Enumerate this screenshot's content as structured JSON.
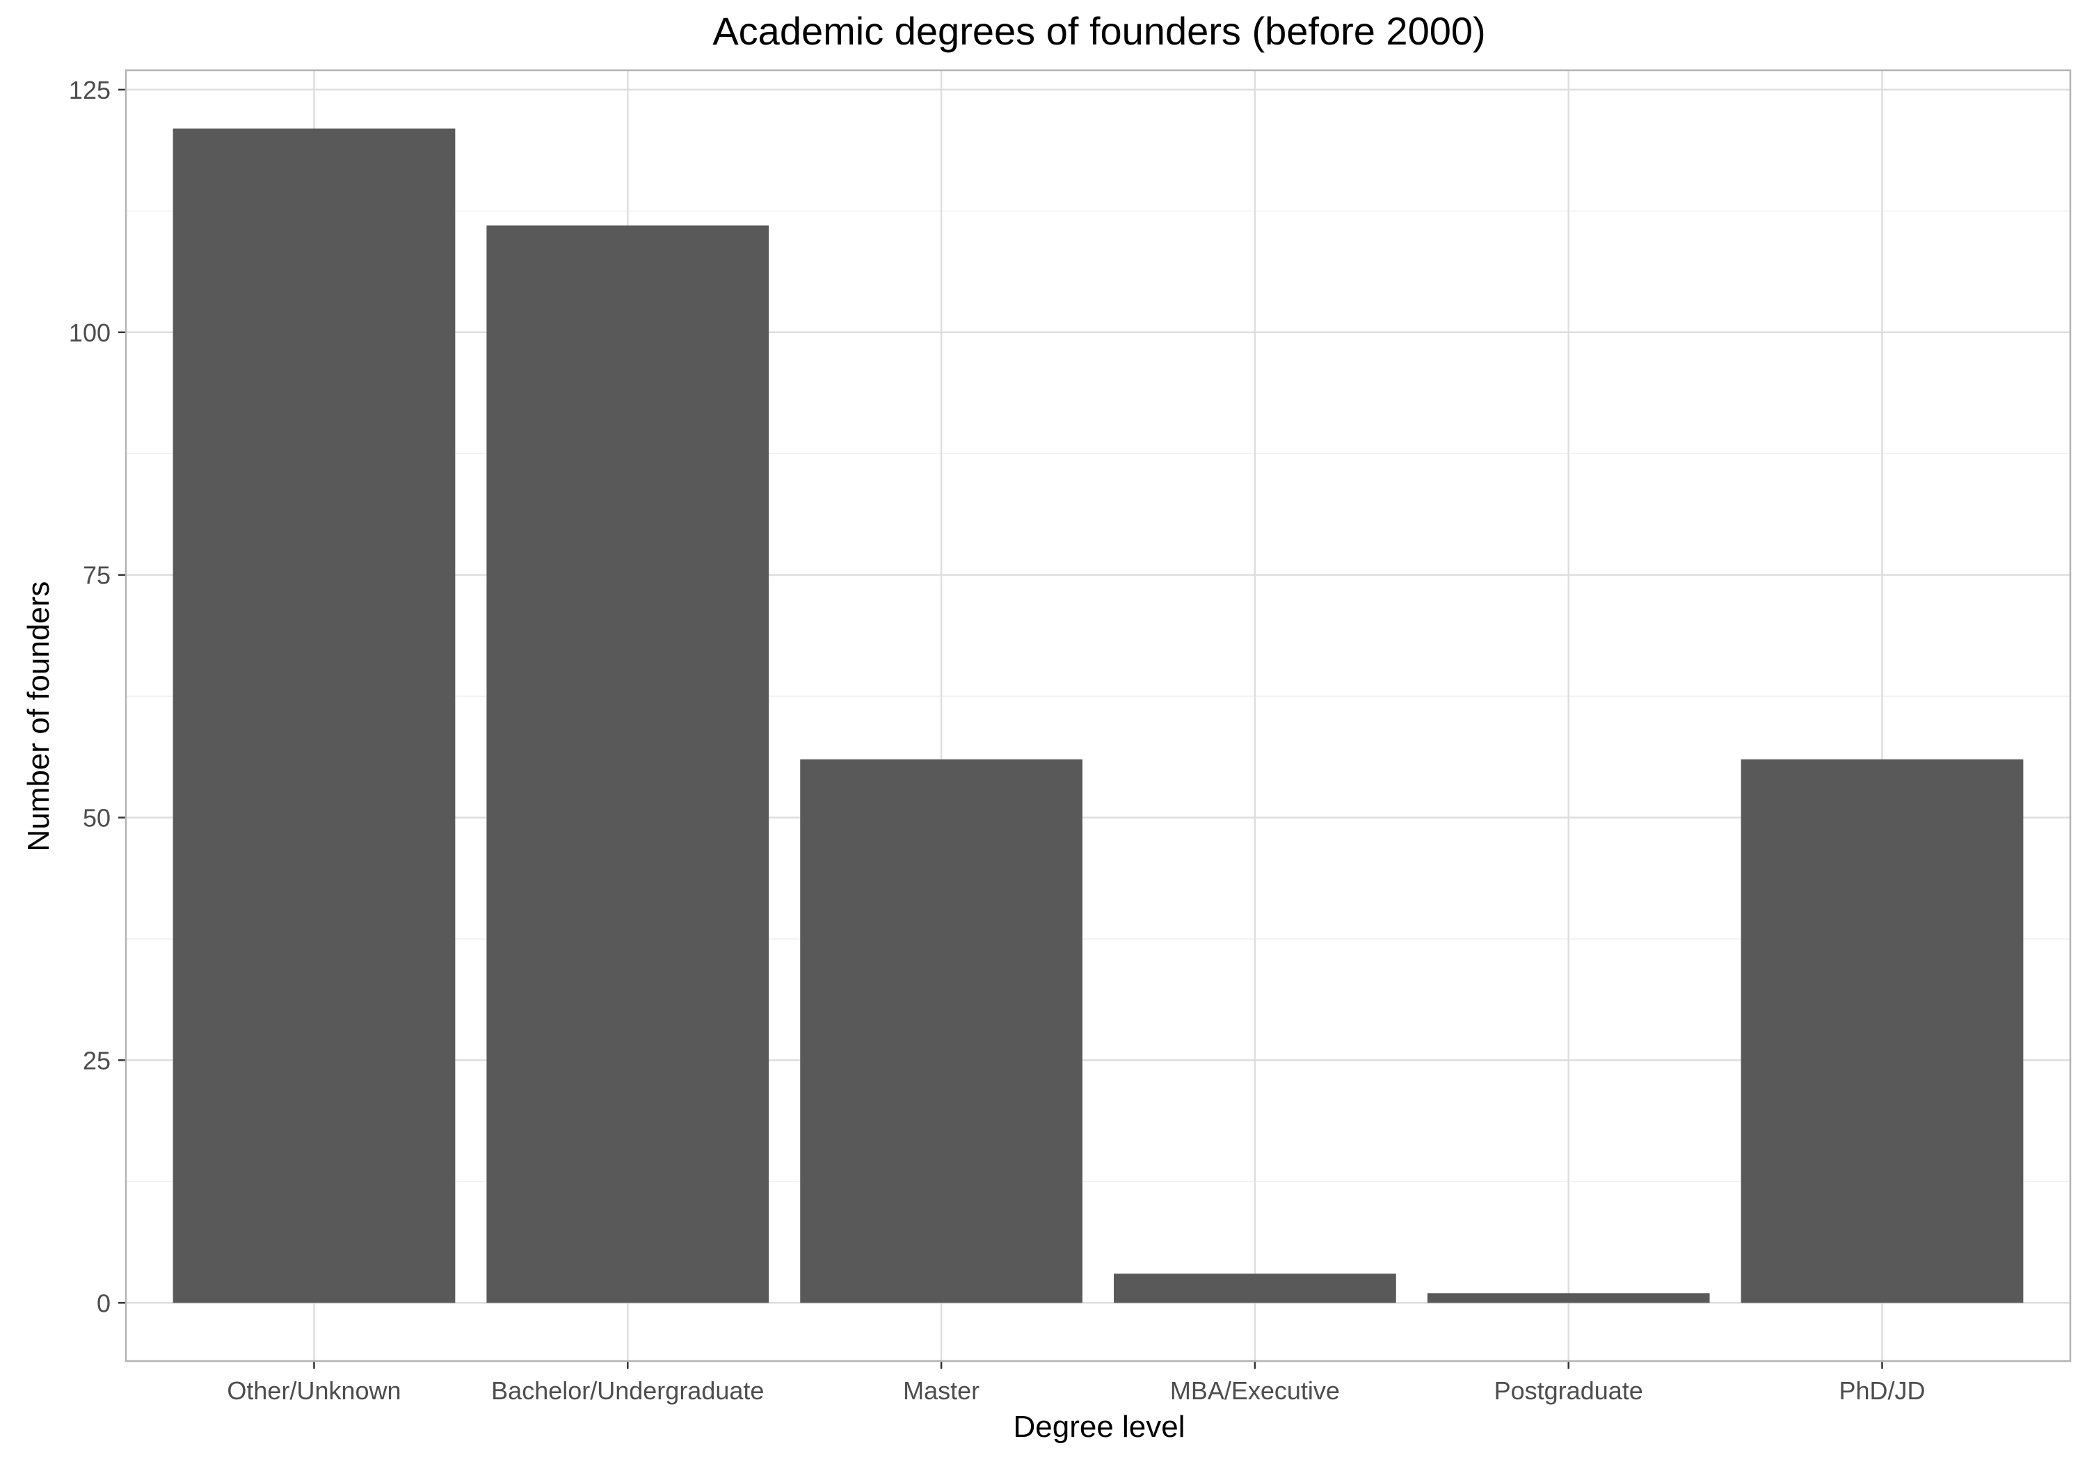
{
  "chart_data": {
    "type": "bar",
    "title": "Academic degrees of founders (before 2000)",
    "xlabel": "Degree level",
    "ylabel": "Number of founders",
    "categories": [
      "Other/Unknown",
      "Bachelor/Undergraduate",
      "Master",
      "MBA/Executive",
      "Postgraduate",
      "PhD/JD"
    ],
    "values": [
      121,
      111,
      56,
      3,
      1,
      56
    ],
    "ylim": [
      -6,
      127
    ],
    "yticks": [
      0,
      25,
      50,
      75,
      100,
      125
    ],
    "grid": true,
    "bar_color": "#595959",
    "grid_color": "#dedede",
    "minor_grid_color": "#f0f0f0",
    "panel_border_color": "#b3b3b3",
    "axis_text_color": "#4d4d4d"
  }
}
